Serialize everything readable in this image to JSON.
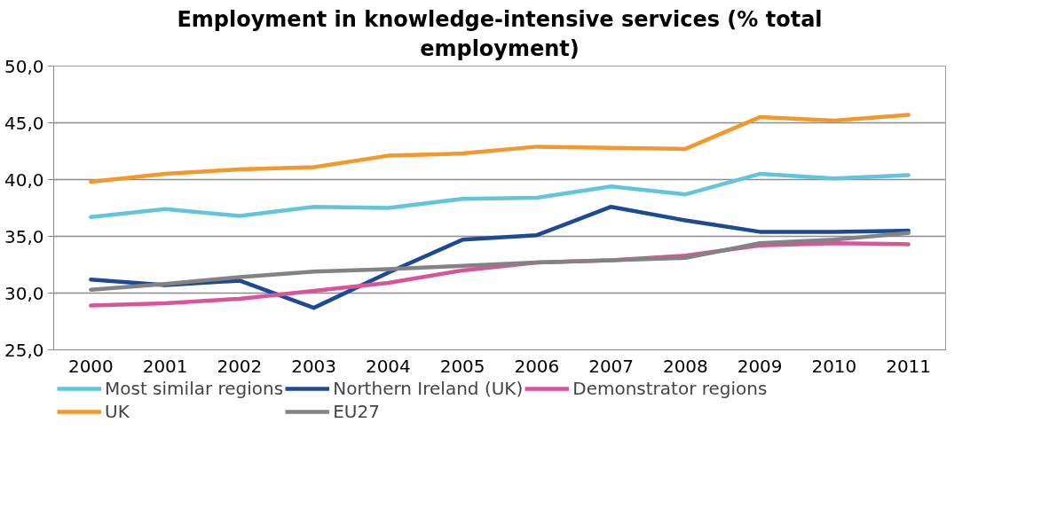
{
  "chart_data": {
    "type": "line",
    "title": "Employment in knowledge-intensive services (% total employment)",
    "categories": [
      "2000",
      "2001",
      "2002",
      "2003",
      "2004",
      "2005",
      "2006",
      "2007",
      "2008",
      "2009",
      "2010",
      "2011"
    ],
    "series": [
      {
        "name": "Most similar regions",
        "color": "#63c5dc",
        "values": [
          36.7,
          37.4,
          36.8,
          37.6,
          37.5,
          38.3,
          38.4,
          39.4,
          38.7,
          40.5,
          40.1,
          40.4
        ]
      },
      {
        "name": "Northern Ireland (UK)",
        "color": "#1c4a93",
        "values": [
          31.2,
          30.7,
          31.1,
          28.7,
          31.8,
          34.7,
          35.1,
          37.6,
          36.4,
          35.4,
          35.4,
          35.5
        ]
      },
      {
        "name": "Demonstrator regions",
        "color": "#d9559a",
        "values": [
          28.9,
          29.1,
          29.5,
          30.2,
          30.9,
          32.0,
          32.7,
          32.9,
          33.3,
          34.2,
          34.4,
          34.3
        ]
      },
      {
        "name": "UK",
        "color": "#f3982c",
        "values": [
          39.8,
          40.5,
          40.9,
          41.1,
          42.1,
          42.3,
          42.9,
          42.8,
          42.7,
          45.5,
          45.2,
          45.7
        ]
      },
      {
        "name": "EU27",
        "color": "#838383",
        "values": [
          30.3,
          30.8,
          31.4,
          31.9,
          32.1,
          32.4,
          32.7,
          32.9,
          33.1,
          34.4,
          34.7,
          35.3
        ]
      }
    ],
    "ylim": [
      25,
      50
    ],
    "yticks": [
      {
        "value": 25,
        "label": "25,0"
      },
      {
        "value": 30,
        "label": "30,0"
      },
      {
        "value": 35,
        "label": "35,0"
      },
      {
        "value": 40,
        "label": "40,0"
      },
      {
        "value": 45,
        "label": "45,0"
      },
      {
        "value": 50,
        "label": "50,0"
      }
    ],
    "grid": "y",
    "legend": "bottom",
    "marker": "none",
    "line_style": "solid"
  }
}
